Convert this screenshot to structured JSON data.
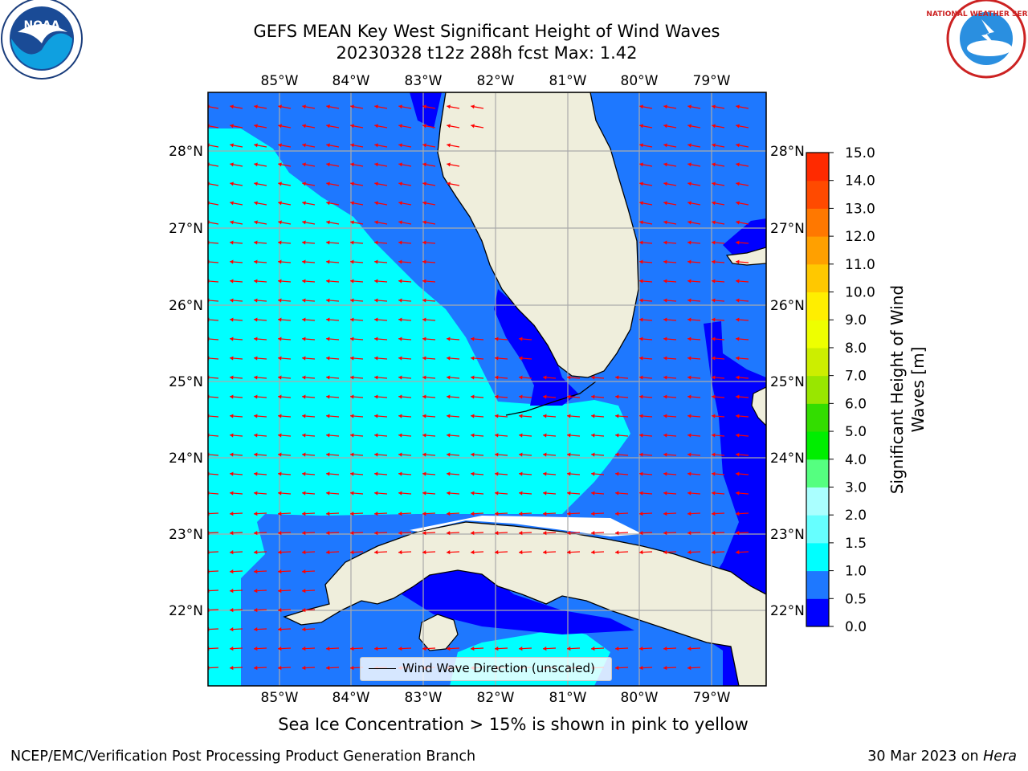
{
  "title_line1": "GEFS MEAN Key West Significant Height of Wind Waves",
  "title_line2": "20230328 t12z 288h fcst   Max: 1.42",
  "map": {
    "lon_labels": [
      "85°W",
      "84°W",
      "83°W",
      "82°W",
      "81°W",
      "80°W",
      "79°W"
    ],
    "lat_labels": [
      "22°N",
      "23°N",
      "24°N",
      "25°N",
      "26°N",
      "27°N",
      "28°N"
    ],
    "legend_label": "Wind Wave Direction (unscaled)",
    "vector_color": "#ff0000"
  },
  "colorbar": {
    "title_line1": "Significant Height of Wind",
    "title_line2": "Waves [m]",
    "ticks": [
      "0.0",
      "0.5",
      "1.0",
      "1.5",
      "2.0",
      "3.0",
      "4.0",
      "5.0",
      "6.0",
      "7.0",
      "8.0",
      "9.0",
      "10.0",
      "11.0",
      "12.0",
      "13.0",
      "14.0",
      "15.0"
    ],
    "colors": [
      "#0000ff",
      "#1e78ff",
      "#00ffff",
      "#66ffff",
      "#aaffff",
      "#55ff80",
      "#00ee00",
      "#33dd00",
      "#99e600",
      "#ccee00",
      "#eeff00",
      "#ffee00",
      "#ffc800",
      "#ffa000",
      "#ff7800",
      "#ff4a00",
      "#ff2a00",
      "#ff0000"
    ]
  },
  "logos": {
    "left": "NOAA",
    "right": "NATIONAL WEATHER SERVICE"
  },
  "ice_note": "Sea Ice Concentration > 15% is shown in pink to yellow",
  "credit_left": "NCEP/EMC/Verification Post Processing Product Generation Branch",
  "credit_right_date": "30 Mar 2023 on ",
  "credit_right_host": "Hera"
}
